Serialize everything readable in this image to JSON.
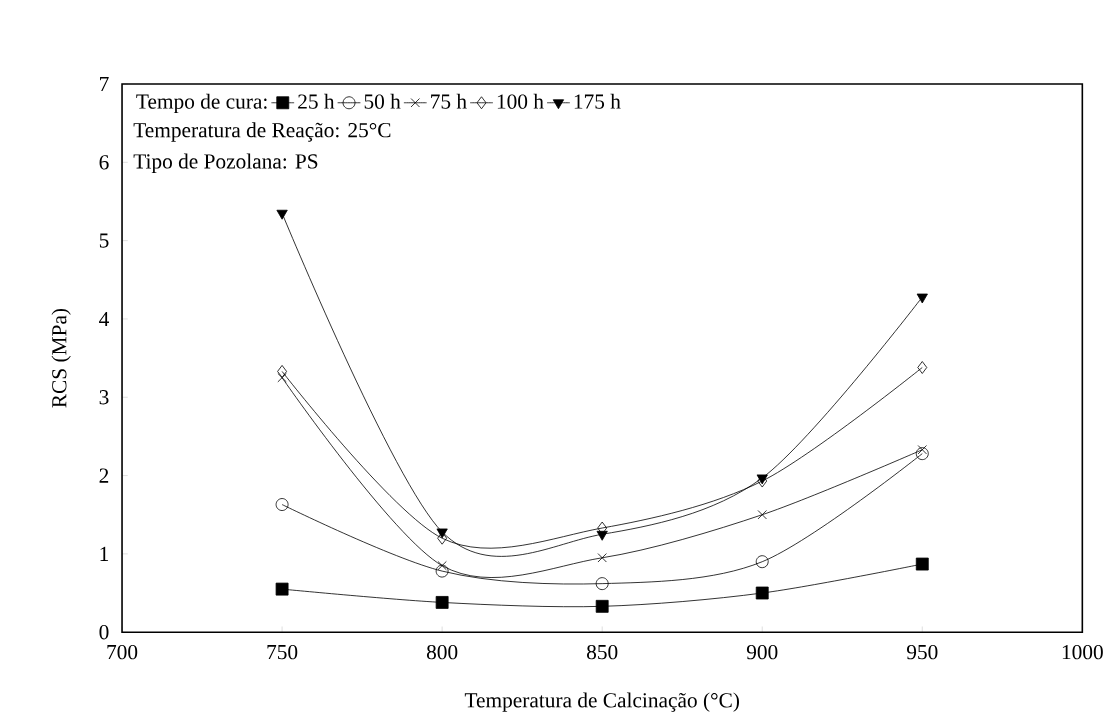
{
  "chart_data": {
    "type": "line",
    "xlabel": "Temperatura de Calcinação (°C)",
    "ylabel": "RCS (MPa)",
    "legend_title": "Tempo de cura:",
    "legend": "top left",
    "grid": false,
    "x": [
      750,
      800,
      850,
      900,
      950
    ],
    "xlim": [
      700,
      1000
    ],
    "xticks": [
      700,
      750,
      800,
      850,
      900,
      950,
      1000
    ],
    "ylim": [
      0,
      7
    ],
    "yticks": [
      0,
      1,
      2,
      3,
      4,
      5,
      6,
      7
    ],
    "series": [
      {
        "name": "25 h",
        "color": "#000000",
        "marker": "square",
        "values": [
          0.55,
          0.38,
          0.33,
          0.5,
          0.87
        ]
      },
      {
        "name": "50 h",
        "color": "#000000",
        "marker": "circle",
        "values": [
          1.63,
          0.78,
          0.62,
          0.9,
          2.28
        ]
      },
      {
        "name": "75 h",
        "color": "#000000",
        "marker": "cross",
        "values": [
          3.25,
          0.85,
          0.95,
          1.5,
          2.33
        ]
      },
      {
        "name": "100 h",
        "color": "#000000",
        "marker": "diamond",
        "values": [
          3.33,
          1.2,
          1.33,
          1.93,
          3.38
        ]
      },
      {
        "name": "175 h",
        "color": "#000000",
        "marker": "triangle",
        "values": [
          5.35,
          1.28,
          1.25,
          1.97,
          4.28
        ]
      }
    ],
    "annotations": [
      "Temperatura de Reação: 25°C",
      "Tipo de Pozolana: PS"
    ]
  }
}
